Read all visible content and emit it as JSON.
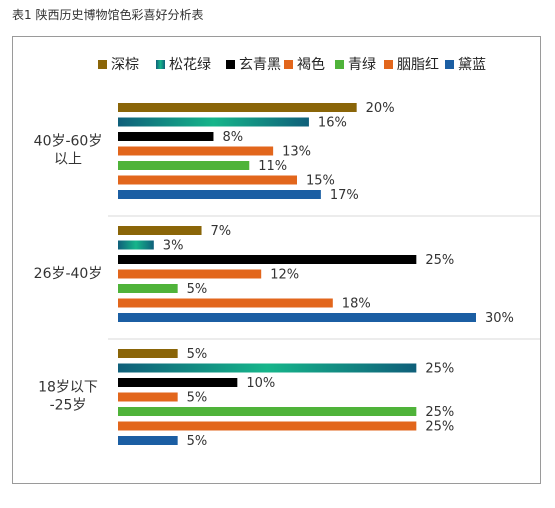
{
  "caption": "表1 陕西历史博物馆色彩喜好分析表",
  "chart_data": {
    "type": "bar",
    "orientation": "horizontal",
    "title": "",
    "xlim": [
      0,
      30
    ],
    "grid": false,
    "legend_position": "top",
    "groups": [
      {
        "label_lines": [
          "40岁-60岁",
          "以上"
        ],
        "values": [
          20,
          16,
          8,
          13,
          11,
          15,
          17
        ]
      },
      {
        "label_lines": [
          "26岁-40岁"
        ],
        "values": [
          7,
          3,
          25,
          12,
          5,
          18,
          30
        ]
      },
      {
        "label_lines": [
          "18岁以下",
          "-25岁"
        ],
        "values": [
          5,
          25,
          10,
          5,
          25,
          25,
          5
        ]
      }
    ],
    "series": [
      {
        "name": "深棕",
        "color": "#8a6508"
      },
      {
        "name": "松花绿",
        "color": "#16b58a",
        "gradient_to": "#0f5f7a"
      },
      {
        "name": "玄青黑",
        "color": "#000000"
      },
      {
        "name": "褐色",
        "color": "#e2661c"
      },
      {
        "name": "青绿",
        "color": "#4fb33a"
      },
      {
        "name": "胭脂红",
        "color": "#e2661c"
      },
      {
        "name": "黛蓝",
        "color": "#1b5ea3"
      }
    ],
    "value_suffix": "%"
  }
}
